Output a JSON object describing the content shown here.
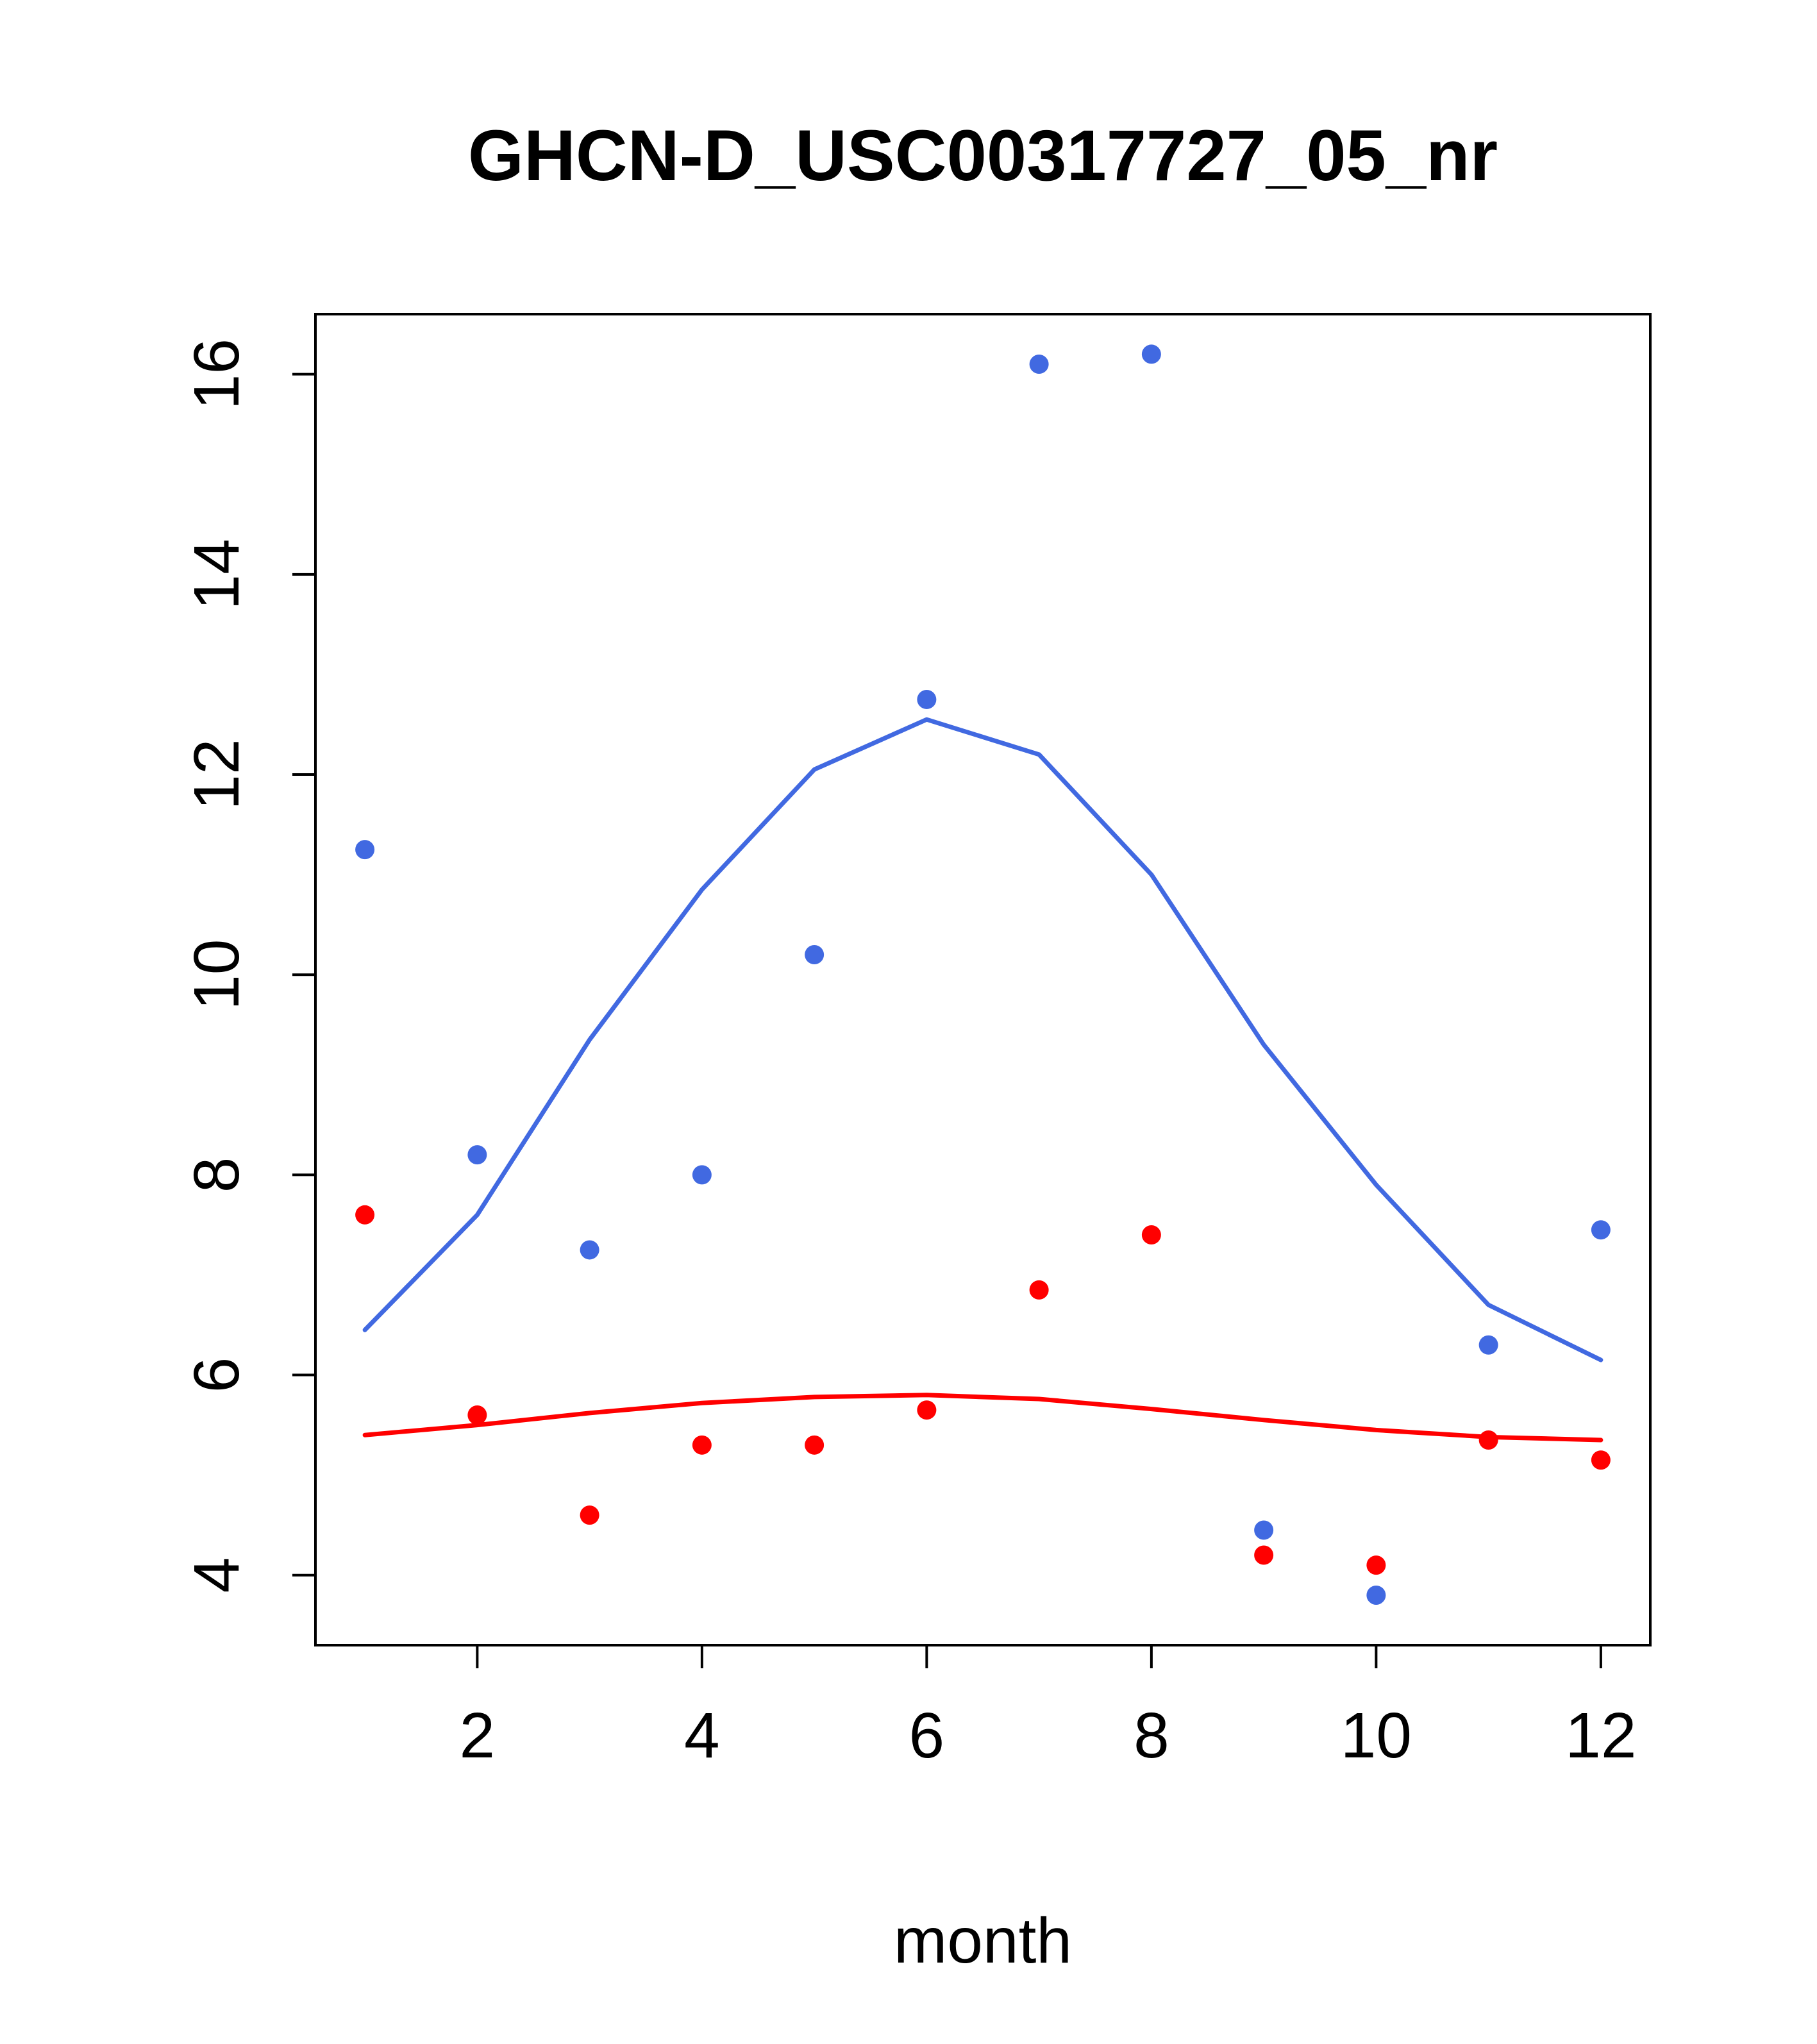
{
  "chart_data": {
    "type": "scatter",
    "title": "GHCN-D_USC00317727_05_nr",
    "xlabel": "month",
    "ylabel": "",
    "xlim": [
      0.56,
      12.44
    ],
    "ylim": [
      3.3,
      16.6
    ],
    "xticks": [
      2,
      4,
      6,
      8,
      10,
      12
    ],
    "yticks": [
      4,
      6,
      8,
      10,
      12,
      14,
      16
    ],
    "grid": "off",
    "legend": "none",
    "x": [
      1,
      2,
      3,
      4,
      5,
      6,
      7,
      8,
      9,
      10,
      11,
      12
    ],
    "series": [
      {
        "name": "blue-scatter",
        "kind": "points",
        "color": "#4169E1",
        "values": [
          11.25,
          8.2,
          7.25,
          8.0,
          10.2,
          12.75,
          16.1,
          16.2,
          4.45,
          3.8,
          6.3,
          7.45
        ]
      },
      {
        "name": "red-scatter",
        "kind": "points",
        "color": "#FF0000",
        "values": [
          7.6,
          5.6,
          4.6,
          5.3,
          5.3,
          5.65,
          6.85,
          7.4,
          4.2,
          4.1,
          5.35,
          5.15
        ]
      },
      {
        "name": "blue-smooth-line",
        "kind": "line",
        "color": "#4169E1",
        "values": [
          6.45,
          7.6,
          9.35,
          10.85,
          12.05,
          12.55,
          12.2,
          11.0,
          9.3,
          7.9,
          6.7,
          6.15
        ]
      },
      {
        "name": "red-smooth-line",
        "kind": "line",
        "color": "#FF0000",
        "values": [
          5.4,
          5.5,
          5.62,
          5.72,
          5.78,
          5.8,
          5.76,
          5.66,
          5.55,
          5.45,
          5.38,
          5.35
        ]
      }
    ]
  }
}
